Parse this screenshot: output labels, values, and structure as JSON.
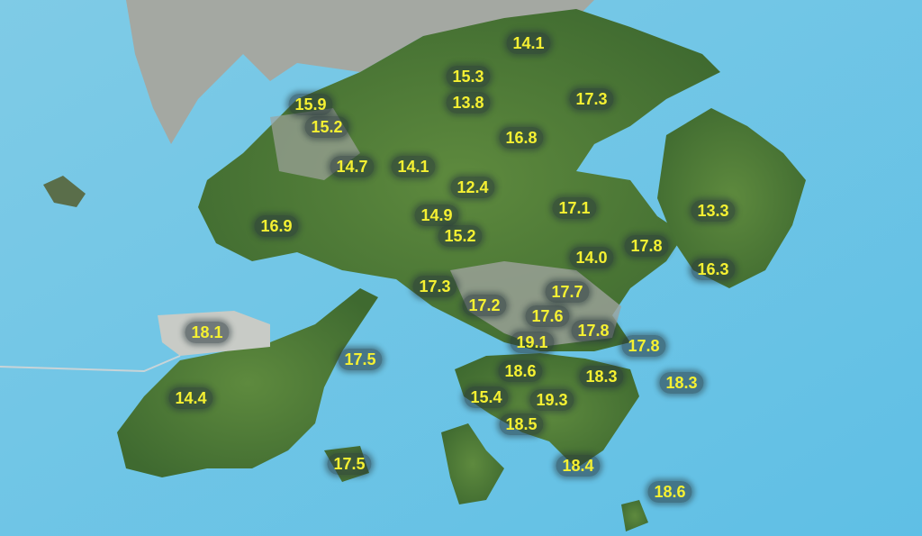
{
  "map": {
    "sea_color": "#6ec6e6",
    "land_color": "#4f7a3a",
    "urban_color": "#9a9f9a",
    "label_color": "#f5f032"
  },
  "stations": [
    {
      "value": "14.1"
    },
    {
      "value": "15.3"
    },
    {
      "value": "13.8"
    },
    {
      "value": "17.3"
    },
    {
      "value": "15.9"
    },
    {
      "value": "15.2"
    },
    {
      "value": "16.8"
    },
    {
      "value": "14.7"
    },
    {
      "value": "14.1"
    },
    {
      "value": "12.4"
    },
    {
      "value": "17.1"
    },
    {
      "value": "13.3"
    },
    {
      "value": "14.9"
    },
    {
      "value": "16.9"
    },
    {
      "value": "15.2"
    },
    {
      "value": "17.8"
    },
    {
      "value": "14.0"
    },
    {
      "value": "16.3"
    },
    {
      "value": "17.3"
    },
    {
      "value": "17.7"
    },
    {
      "value": "17.2"
    },
    {
      "value": "17.6"
    },
    {
      "value": "18.1"
    },
    {
      "value": "17.8"
    },
    {
      "value": "19.1"
    },
    {
      "value": "17.8"
    },
    {
      "value": "17.5"
    },
    {
      "value": "18.6"
    },
    {
      "value": "18.3"
    },
    {
      "value": "18.3"
    },
    {
      "value": "14.4"
    },
    {
      "value": "15.4"
    },
    {
      "value": "19.3"
    },
    {
      "value": "18.5"
    },
    {
      "value": "17.5"
    },
    {
      "value": "18.4"
    },
    {
      "value": "18.6"
    }
  ]
}
